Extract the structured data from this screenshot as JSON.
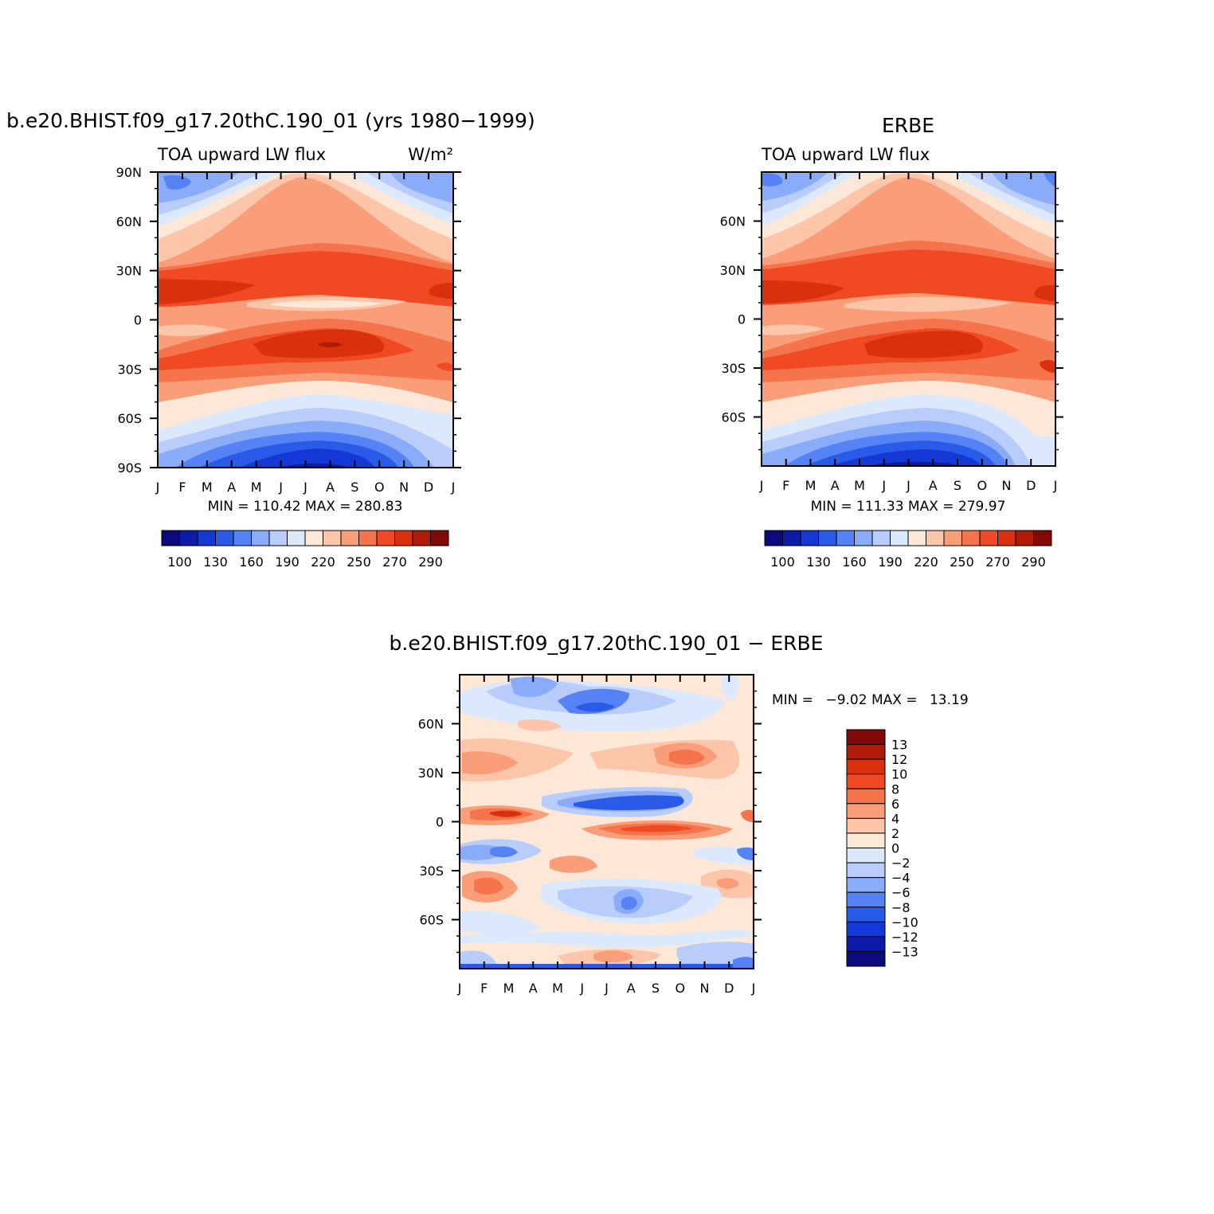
{
  "chart_data": [
    {
      "type": "heatmap",
      "title": "b.e20.BHIST.f09_g17.20thC.190_01 (yrs 1980−1999)",
      "subtitle_left": "TOA upward LW flux",
      "units": "W/m²",
      "x_ticks": [
        "J",
        "F",
        "M",
        "A",
        "M",
        "J",
        "J",
        "A",
        "S",
        "O",
        "N",
        "D",
        "J"
      ],
      "y_ticks": [
        "90N",
        "60N",
        "30N",
        "0",
        "30S",
        "60S",
        "90S"
      ],
      "ylim": [
        -90,
        90
      ],
      "min_label": "MIN =",
      "min_value": "110.42",
      "max_label": "MAX =",
      "max_value": "280.83",
      "colorbar_labels": [
        "100",
        "130",
        "160",
        "190",
        "220",
        "250",
        "270",
        "290"
      ],
      "colorbar_colors": [
        "#0a0a7d",
        "#0d1ba8",
        "#1438d6",
        "#2a5ae8",
        "#5583f5",
        "#8aacf8",
        "#b8cdfb",
        "#dce9fd",
        "#fde8d8",
        "#fdc6ab",
        "#fa9e7a",
        "#f6744b",
        "#ef4a23",
        "#d9300d",
        "#b01a08",
        "#830808"
      ],
      "seasonal_peaks": [
        "warm band near 15N–20N",
        "warm band near 10S–20S",
        "cold polar regions (Antarctic winter minimum)"
      ]
    },
    {
      "type": "heatmap",
      "title": "ERBE",
      "subtitle_left": "TOA upward LW flux",
      "x_ticks": [
        "J",
        "F",
        "M",
        "A",
        "M",
        "J",
        "J",
        "A",
        "S",
        "O",
        "N",
        "D",
        "J"
      ],
      "y_ticks": [
        "60N",
        "30N",
        "0",
        "30S",
        "60S"
      ],
      "ylim": [
        -90,
        90
      ],
      "min_label": "MIN =",
      "min_value": "111.33",
      "max_label": "MAX =",
      "max_value": "279.97",
      "colorbar_labels": [
        "100",
        "130",
        "160",
        "190",
        "220",
        "250",
        "270",
        "290"
      ],
      "colorbar_colors": [
        "#0a0a7d",
        "#0d1ba8",
        "#1438d6",
        "#2a5ae8",
        "#5583f5",
        "#8aacf8",
        "#b8cdfb",
        "#dce9fd",
        "#fde8d8",
        "#fdc6ab",
        "#fa9e7a",
        "#f6744b",
        "#ef4a23",
        "#d9300d",
        "#b01a08",
        "#830808"
      ]
    },
    {
      "type": "heatmap",
      "title": "b.e20.BHIST.f09_g17.20thC.190_01 − ERBE",
      "x_ticks": [
        "J",
        "F",
        "M",
        "A",
        "M",
        "J",
        "J",
        "A",
        "S",
        "O",
        "N",
        "D",
        "J"
      ],
      "y_ticks": [
        "60N",
        "30N",
        "0",
        "30S",
        "60S"
      ],
      "ylim": [
        -90,
        90
      ],
      "min_label": "MIN =",
      "min_value": "−9.02",
      "max_label": "MAX =",
      "max_value": "13.19",
      "colorbar_labels": [
        "13",
        "12",
        "10",
        "8",
        "6",
        "4",
        "2",
        "0",
        "−2",
        "−4",
        "−6",
        "−8",
        "−10",
        "−12",
        "−13"
      ],
      "colorbar_colors": [
        "#830808",
        "#b01a08",
        "#d9300d",
        "#ef4a23",
        "#f6744b",
        "#fa9e7a",
        "#fdc6ab",
        "#fde8d8",
        "#dce9fd",
        "#b8cdfb",
        "#8aacf8",
        "#5583f5",
        "#2a5ae8",
        "#1438d6",
        "#0d1ba8",
        "#0a0a7d"
      ]
    }
  ]
}
